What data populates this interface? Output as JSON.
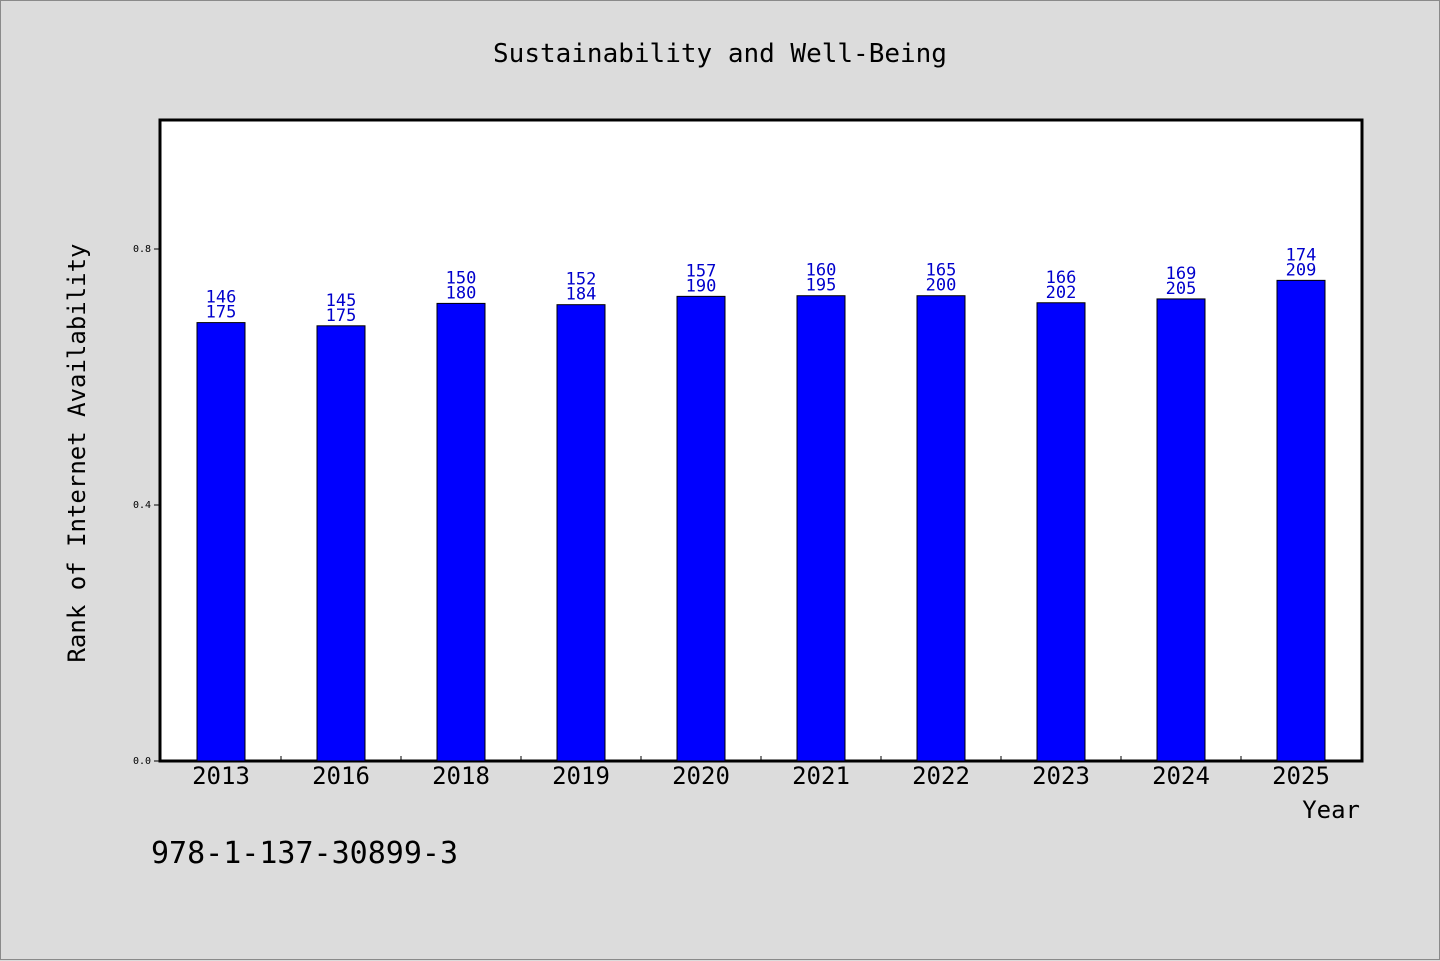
{
  "chart_data": {
    "type": "bar",
    "title": "Sustainability and Well-Being",
    "xlabel": "Year",
    "ylabel": "Rank of Internet Availability",
    "categories": [
      "2013",
      "2016",
      "2018",
      "2019",
      "2020",
      "2021",
      "2022",
      "2023",
      "2024",
      "2025"
    ],
    "values": [
      0.685,
      0.68,
      0.715,
      0.713,
      0.726,
      0.727,
      0.727,
      0.716,
      0.722,
      0.751
    ],
    "data_labels": [
      [
        "146",
        "175"
      ],
      [
        "145",
        "175"
      ],
      [
        "150",
        "180"
      ],
      [
        "152",
        "184"
      ],
      [
        "157",
        "190"
      ],
      [
        "160",
        "195"
      ],
      [
        "165",
        "200"
      ],
      [
        "166",
        "202"
      ],
      [
        "169",
        "205"
      ],
      [
        "174",
        "209"
      ]
    ],
    "ylim": [
      0.0,
      1.0
    ],
    "yticks": [
      "0.0",
      "0.4",
      "0.8"
    ],
    "ytick_values": [
      0.0,
      0.4,
      0.8
    ],
    "grid": false,
    "bar_color": "#0000ff",
    "label_color": "#0000cc"
  },
  "footer": {
    "isbn": "978-1-137-30899-3"
  }
}
